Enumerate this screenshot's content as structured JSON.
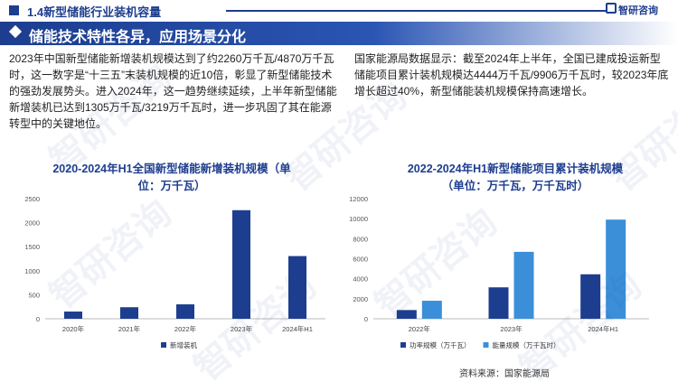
{
  "header": {
    "title": "1.4新型储能行业装机容量",
    "brand": "智研咨询"
  },
  "banner": {
    "title": "储能技术特性各异，应用场景分化"
  },
  "text": {
    "left": "2023年中国新型储能新增装机规模达到了约2260万千瓦/4870万千瓦时，这一数字是“十三五”末装机规模的近10倍，彰显了新型储能技术的强劲发展势头。进入2024年，这一趋势继续延续，上半年新型储能新增装机已达到1305万千瓦/3219万千瓦时，进一步巩固了其在能源转型中的关键地位。",
    "right": "国家能源局数据显示：截至2024年上半年，全国已建成投运新型储能项目累计装机规模达4444万千瓦/9906万千瓦时，较2023年底增长超过40%，新型储能装机规模保持高速增长。"
  },
  "source": "资料来源：国家能源局",
  "watermark": "智研咨询",
  "chart_data": [
    {
      "type": "bar",
      "title": "2020-2024年H1全国新型储能新增装机规模（单位：万千瓦）",
      "title_line1": "2020-2024年H1全国新型储能新增装机规模（单",
      "title_line2": "位：万千瓦）",
      "categories": [
        "2020年",
        "2021年",
        "2022年",
        "2023年",
        "2024年H1"
      ],
      "series": [
        {
          "name": "新增装机",
          "color": "#1d3d8f",
          "values": [
            150,
            240,
            300,
            2260,
            1305
          ]
        }
      ],
      "ylim": [
        0,
        2500
      ],
      "yticks": [
        0,
        500,
        1000,
        1500,
        2000,
        2500
      ],
      "grid": false,
      "legend": "bottom-left"
    },
    {
      "type": "bar",
      "title": "2022-2024年H1新型储能项目累计装机规模（单位：万千瓦，万千瓦时）",
      "title_line1": "2022-2024年H1新型储能项目累计装机规模",
      "title_line2": "（单位：万千瓦，万千瓦时）",
      "categories": [
        "2022年",
        "2023年",
        "2024年H1"
      ],
      "series": [
        {
          "name": "功率规模（万千瓦）",
          "color": "#1d3d8f",
          "values": [
            870,
            3139,
            4444
          ]
        },
        {
          "name": "能量规模（万千瓦时）",
          "color": "#3b8fd9",
          "values": [
            1800,
            6687,
            9906
          ]
        }
      ],
      "ylim": [
        0,
        12000
      ],
      "yticks": [
        0,
        2000,
        4000,
        6000,
        8000,
        10000,
        12000
      ],
      "grid": false,
      "legend": "bottom"
    }
  ]
}
